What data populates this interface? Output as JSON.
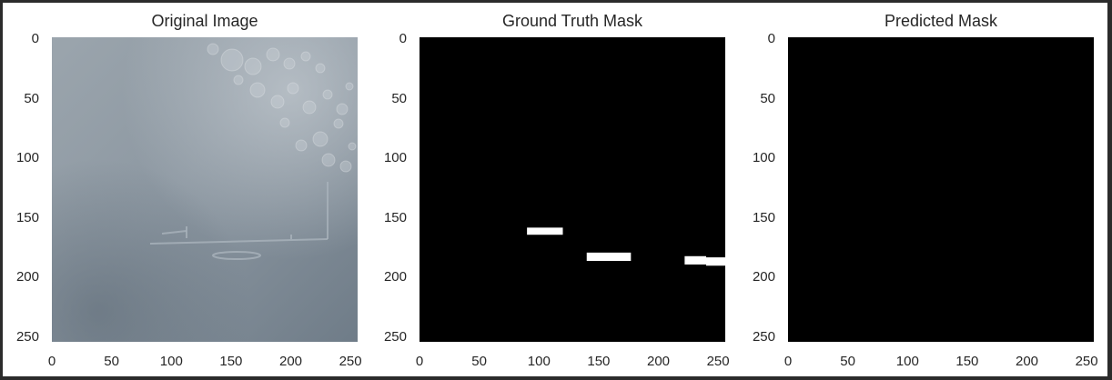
{
  "chart_data": [
    {
      "type": "image",
      "title": "Original Image",
      "xlim": [
        0,
        256
      ],
      "ylim": [
        256,
        0
      ],
      "xticks": [
        0,
        50,
        100,
        150,
        200,
        250
      ],
      "yticks": [
        0,
        50,
        100,
        150,
        200,
        250
      ],
      "content": "grayscale photograph of a blue-gray surface with circular blotches in the upper right and a faint horizontal line structure near y=170",
      "base_color": "#8a96a1",
      "grid": false
    },
    {
      "type": "image",
      "title": "Ground Truth Mask",
      "xlim": [
        0,
        256
      ],
      "ylim": [
        256,
        0
      ],
      "xticks": [
        0,
        50,
        100,
        150,
        200,
        250
      ],
      "yticks": [
        0,
        50,
        100,
        150,
        200,
        250
      ],
      "background_color": "#000000",
      "foreground_color": "#ffffff",
      "regions": [
        {
          "x0": 90,
          "x1": 120,
          "y0": 160,
          "y1": 166
        },
        {
          "x0": 140,
          "x1": 177,
          "y0": 181,
          "y1": 188
        },
        {
          "x0": 222,
          "x1": 240,
          "y0": 184,
          "y1": 191
        },
        {
          "x0": 240,
          "x1": 256,
          "y0": 185,
          "y1": 192
        }
      ],
      "grid": false
    },
    {
      "type": "image",
      "title": "Predicted Mask",
      "xlim": [
        0,
        256
      ],
      "ylim": [
        256,
        0
      ],
      "xticks": [
        0,
        50,
        100,
        150,
        200,
        250
      ],
      "yticks": [
        0,
        50,
        100,
        150,
        200,
        250
      ],
      "background_color": "#000000",
      "regions": [],
      "grid": false
    }
  ]
}
